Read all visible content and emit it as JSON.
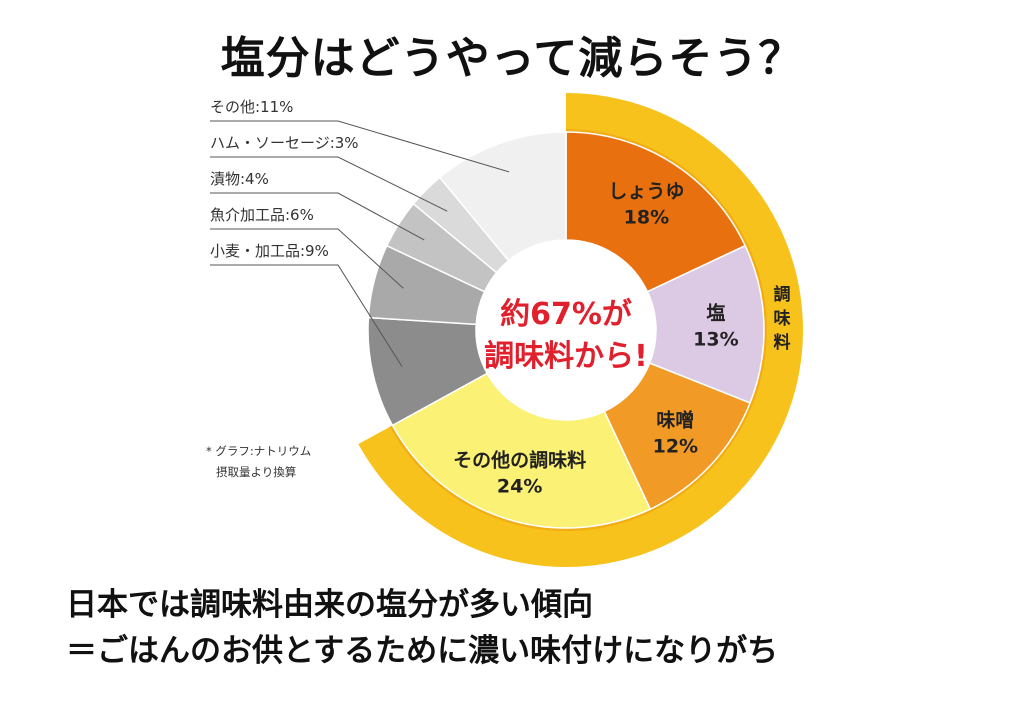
{
  "title": "塩分はどうやって減らそう？",
  "chart_data": {
    "type": "pie",
    "variant": "donut",
    "slices": [
      {
        "label": "しょうゆ",
        "value": 18,
        "display": "18%",
        "color": "#e8700e",
        "group": "condiment",
        "label_position": "inside"
      },
      {
        "label": "塩",
        "value": 13,
        "display": "13%",
        "color": "#dcc9e4",
        "group": "condiment",
        "label_position": "inside"
      },
      {
        "label": "味噌",
        "value": 12,
        "display": "12%",
        "color": "#f19b26",
        "group": "condiment",
        "label_position": "inside"
      },
      {
        "label": "その他の調味料",
        "value": 24,
        "display": "24%",
        "color": "#fbf175",
        "group": "condiment",
        "label_position": "inside"
      },
      {
        "label": "小麦・加工品",
        "value": 9,
        "display": "小麦・加工品:9%",
        "color": "#8c8c8c",
        "group": "other",
        "label_position": "leader"
      },
      {
        "label": "魚介加工品",
        "value": 6,
        "display": "魚介加工品:6%",
        "color": "#a9a9a9",
        "group": "other",
        "label_position": "leader"
      },
      {
        "label": "漬物",
        "value": 4,
        "display": "漬物:4%",
        "color": "#c3c3c3",
        "group": "other",
        "label_position": "leader"
      },
      {
        "label": "ハム・ソーセージ",
        "value": 3,
        "display": "ハム・ソーセージ:3%",
        "color": "#dadada",
        "group": "other",
        "label_position": "leader"
      },
      {
        "label": "その他",
        "value": 11,
        "display": "その他:11%",
        "color": "#f0f0f0",
        "group": "other",
        "label_position": "leader"
      }
    ],
    "outer_ring": {
      "label": "調味料",
      "color": "#f8c21c",
      "covers_group": "condiment"
    },
    "center_text": [
      "約67%が",
      "調味料から!"
    ],
    "note": [
      "* グラフ:ナトリウム",
      "摂取量より換算"
    ]
  },
  "footer": {
    "line1": "日本では調味料由来の塩分が多い傾向",
    "line2": "＝ごはんのお供とするために濃い味付けになりがち"
  }
}
